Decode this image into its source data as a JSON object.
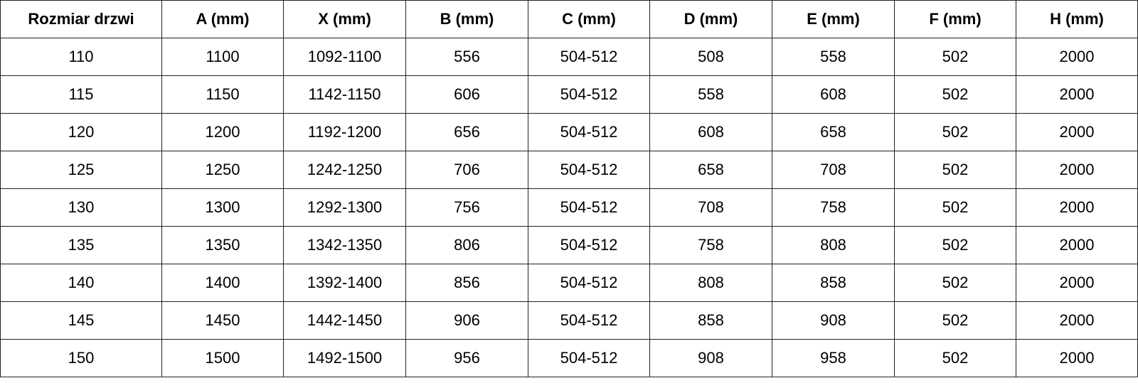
{
  "headers": [
    "Rozmiar drzwi",
    "A (mm)",
    "X (mm)",
    "B (mm)",
    "C (mm)",
    "D (mm)",
    "E (mm)",
    "F (mm)",
    "H (mm)"
  ],
  "rows": [
    [
      "110",
      "1100",
      "1092-1100",
      "556",
      "504-512",
      "508",
      "558",
      "502",
      "2000"
    ],
    [
      "115",
      "1150",
      "1142-1150",
      "606",
      "504-512",
      "558",
      "608",
      "502",
      "2000"
    ],
    [
      "120",
      "1200",
      "1192-1200",
      "656",
      "504-512",
      "608",
      "658",
      "502",
      "2000"
    ],
    [
      "125",
      "1250",
      "1242-1250",
      "706",
      "504-512",
      "658",
      "708",
      "502",
      "2000"
    ],
    [
      "130",
      "1300",
      "1292-1300",
      "756",
      "504-512",
      "708",
      "758",
      "502",
      "2000"
    ],
    [
      "135",
      "1350",
      "1342-1350",
      "806",
      "504-512",
      "758",
      "808",
      "502",
      "2000"
    ],
    [
      "140",
      "1400",
      "1392-1400",
      "856",
      "504-512",
      "808",
      "858",
      "502",
      "2000"
    ],
    [
      "145",
      "1450",
      "1442-1450",
      "906",
      "504-512",
      "858",
      "908",
      "502",
      "2000"
    ],
    [
      "150",
      "1500",
      "1492-1500",
      "956",
      "504-512",
      "908",
      "958",
      "502",
      "2000"
    ]
  ]
}
